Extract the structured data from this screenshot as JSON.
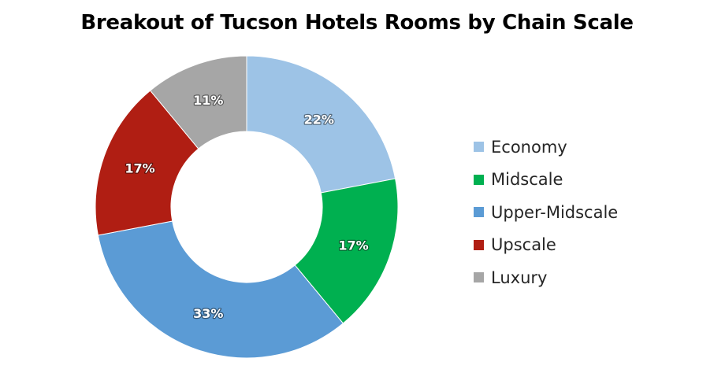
{
  "chart_data": {
    "type": "pie",
    "title": "Breakout of Tucson Hotels Rooms by Chain Scale",
    "categories": [
      "Economy",
      "Midscale",
      "Upper-Midscale",
      "Upscale",
      "Luxury"
    ],
    "values": [
      22,
      17,
      33,
      17,
      11
    ],
    "labels": [
      "22%",
      "17%",
      "33%",
      "17%",
      "11%"
    ],
    "colors": [
      "#9DC3E6",
      "#00B050",
      "#5B9BD5",
      "#B01E13",
      "#A6A6A6"
    ],
    "donut": true,
    "legend": "right"
  }
}
